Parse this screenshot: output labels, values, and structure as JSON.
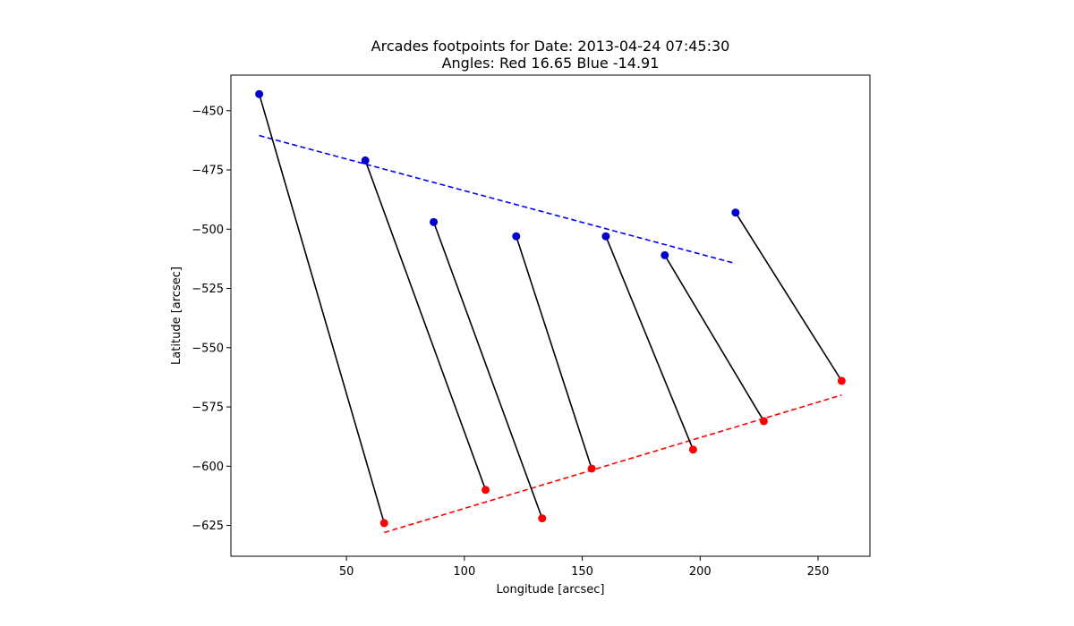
{
  "chart_data": {
    "type": "scatter",
    "title": "Arcades footpoints for Date: 2013-04-24 07:45:30",
    "subtitle": "Angles: Red 16.65 Blue -14.91",
    "xlabel": "Longitude [arcsec]",
    "ylabel": "Latitude [arcsec]",
    "xlim": [
      1,
      272
    ],
    "ylim": [
      -638,
      -435
    ],
    "xticks": [
      50,
      100,
      150,
      200,
      250
    ],
    "yticks": [
      -450,
      -475,
      -500,
      -525,
      -550,
      -575,
      -600,
      -625
    ],
    "grid": false,
    "colors": {
      "blue": "#0000cc",
      "red": "#ff0000",
      "connector": "#000000",
      "blue_fit": "#0000ff",
      "red_fit": "#ff0000"
    },
    "series": [
      {
        "marker": "circle",
        "color": "#0000cc",
        "points": [
          [
            13,
            -443
          ],
          [
            58,
            -471
          ],
          [
            87,
            -497
          ],
          [
            122,
            -503
          ],
          [
            160,
            -503
          ],
          [
            185,
            -511
          ],
          [
            215,
            -493
          ]
        ]
      },
      {
        "marker": "circle",
        "color": "#ff0000",
        "points": [
          [
            66,
            -624
          ],
          [
            109,
            -610
          ],
          [
            133,
            -622
          ],
          [
            154,
            -601
          ],
          [
            197,
            -593
          ],
          [
            227,
            -581
          ],
          [
            260,
            -564
          ]
        ]
      }
    ],
    "connectors": [
      [
        [
          13,
          -443
        ],
        [
          66,
          -624
        ]
      ],
      [
        [
          58,
          -471
        ],
        [
          109,
          -610
        ]
      ],
      [
        [
          87,
          -497
        ],
        [
          133,
          -622
        ]
      ],
      [
        [
          122,
          -503
        ],
        [
          154,
          -601
        ]
      ],
      [
        [
          160,
          -503
        ],
        [
          197,
          -593
        ]
      ],
      [
        [
          185,
          -511
        ],
        [
          227,
          -581
        ]
      ],
      [
        [
          215,
          -493
        ],
        [
          260,
          -564
        ]
      ]
    ],
    "fit_lines": [
      {
        "color": "#0000ff",
        "style": "dashed",
        "points": [
          [
            13,
            -460.5
          ],
          [
            215,
            -514.5
          ]
        ]
      },
      {
        "color": "#ff0000",
        "style": "dashed",
        "points": [
          [
            66,
            -628
          ],
          [
            260,
            -570
          ]
        ]
      }
    ]
  }
}
